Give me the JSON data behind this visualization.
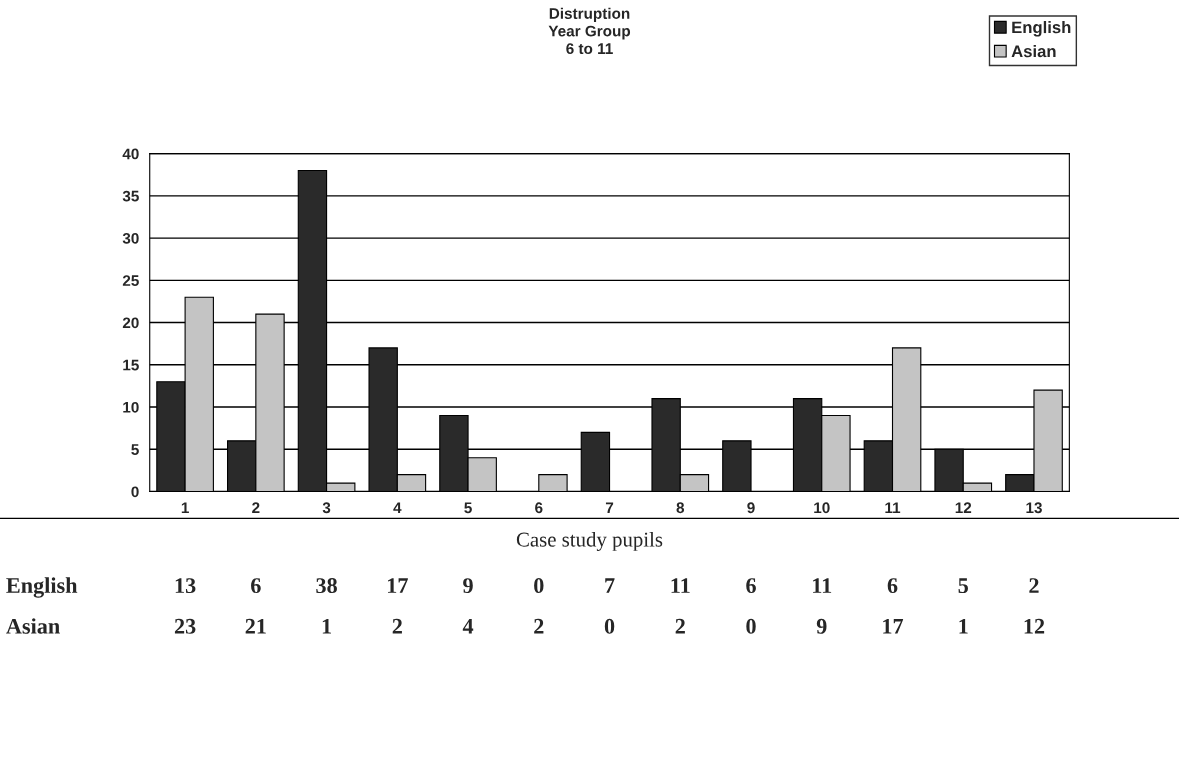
{
  "chart_data": {
    "type": "bar",
    "title": "Distruption\nYear Group\n6 to 11",
    "categories": [
      "1",
      "2",
      "3",
      "4",
      "5",
      "6",
      "7",
      "8",
      "9",
      "10",
      "11",
      "12",
      "13"
    ],
    "series": [
      {
        "name": "English",
        "color": "#2a2a2a",
        "values": [
          13,
          6,
          38,
          17,
          9,
          0,
          7,
          11,
          6,
          11,
          6,
          5,
          2
        ]
      },
      {
        "name": "Asian",
        "color": "#c4c4c4",
        "values": [
          23,
          21,
          1,
          2,
          4,
          2,
          0,
          2,
          0,
          9,
          17,
          1,
          12
        ]
      }
    ],
    "ylim": [
      0,
      40
    ],
    "yticks": [
      0,
      5,
      10,
      15,
      20,
      25,
      30,
      35,
      40
    ],
    "grid": "y",
    "legend": "top right",
    "data_labels": true,
    "annotations": [
      "Case study pupils"
    ]
  }
}
